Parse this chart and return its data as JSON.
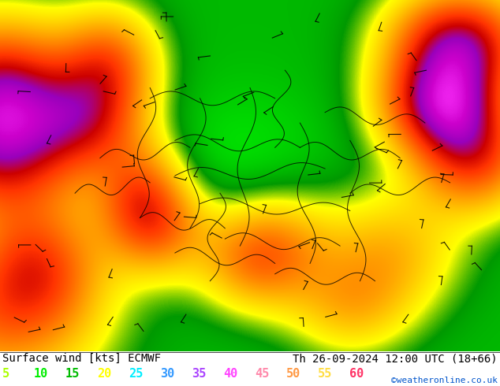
{
  "title_left": "Surface wind [kts] ECMWF",
  "title_right": "Th 26-09-2024 12:00 UTC (18+66)",
  "credit": "©weatheronline.co.uk",
  "legend_values": [
    5,
    10,
    15,
    20,
    25,
    30,
    35,
    40,
    45,
    50,
    55,
    60
  ],
  "legend_colors": [
    "#aaff00",
    "#00ee00",
    "#00bb00",
    "#ffff00",
    "#00eeff",
    "#3399ff",
    "#aa44ff",
    "#ff44ff",
    "#ff88aa",
    "#ff9944",
    "#ffdd44",
    "#ff3366"
  ],
  "map_cmap_colors": [
    "#99ff33",
    "#00dd00",
    "#009900",
    "#ffff00",
    "#ffcc00",
    "#ff9900",
    "#ff6600",
    "#ff3300",
    "#cc0000",
    "#9900bb",
    "#cc00cc",
    "#ff33ff"
  ],
  "bg_color": "#ffffff",
  "ocean_color": "#55bbcc",
  "title_fontsize": 10,
  "legend_fontsize": 11,
  "credit_fontsize": 8,
  "fig_width": 6.34,
  "fig_height": 4.9
}
